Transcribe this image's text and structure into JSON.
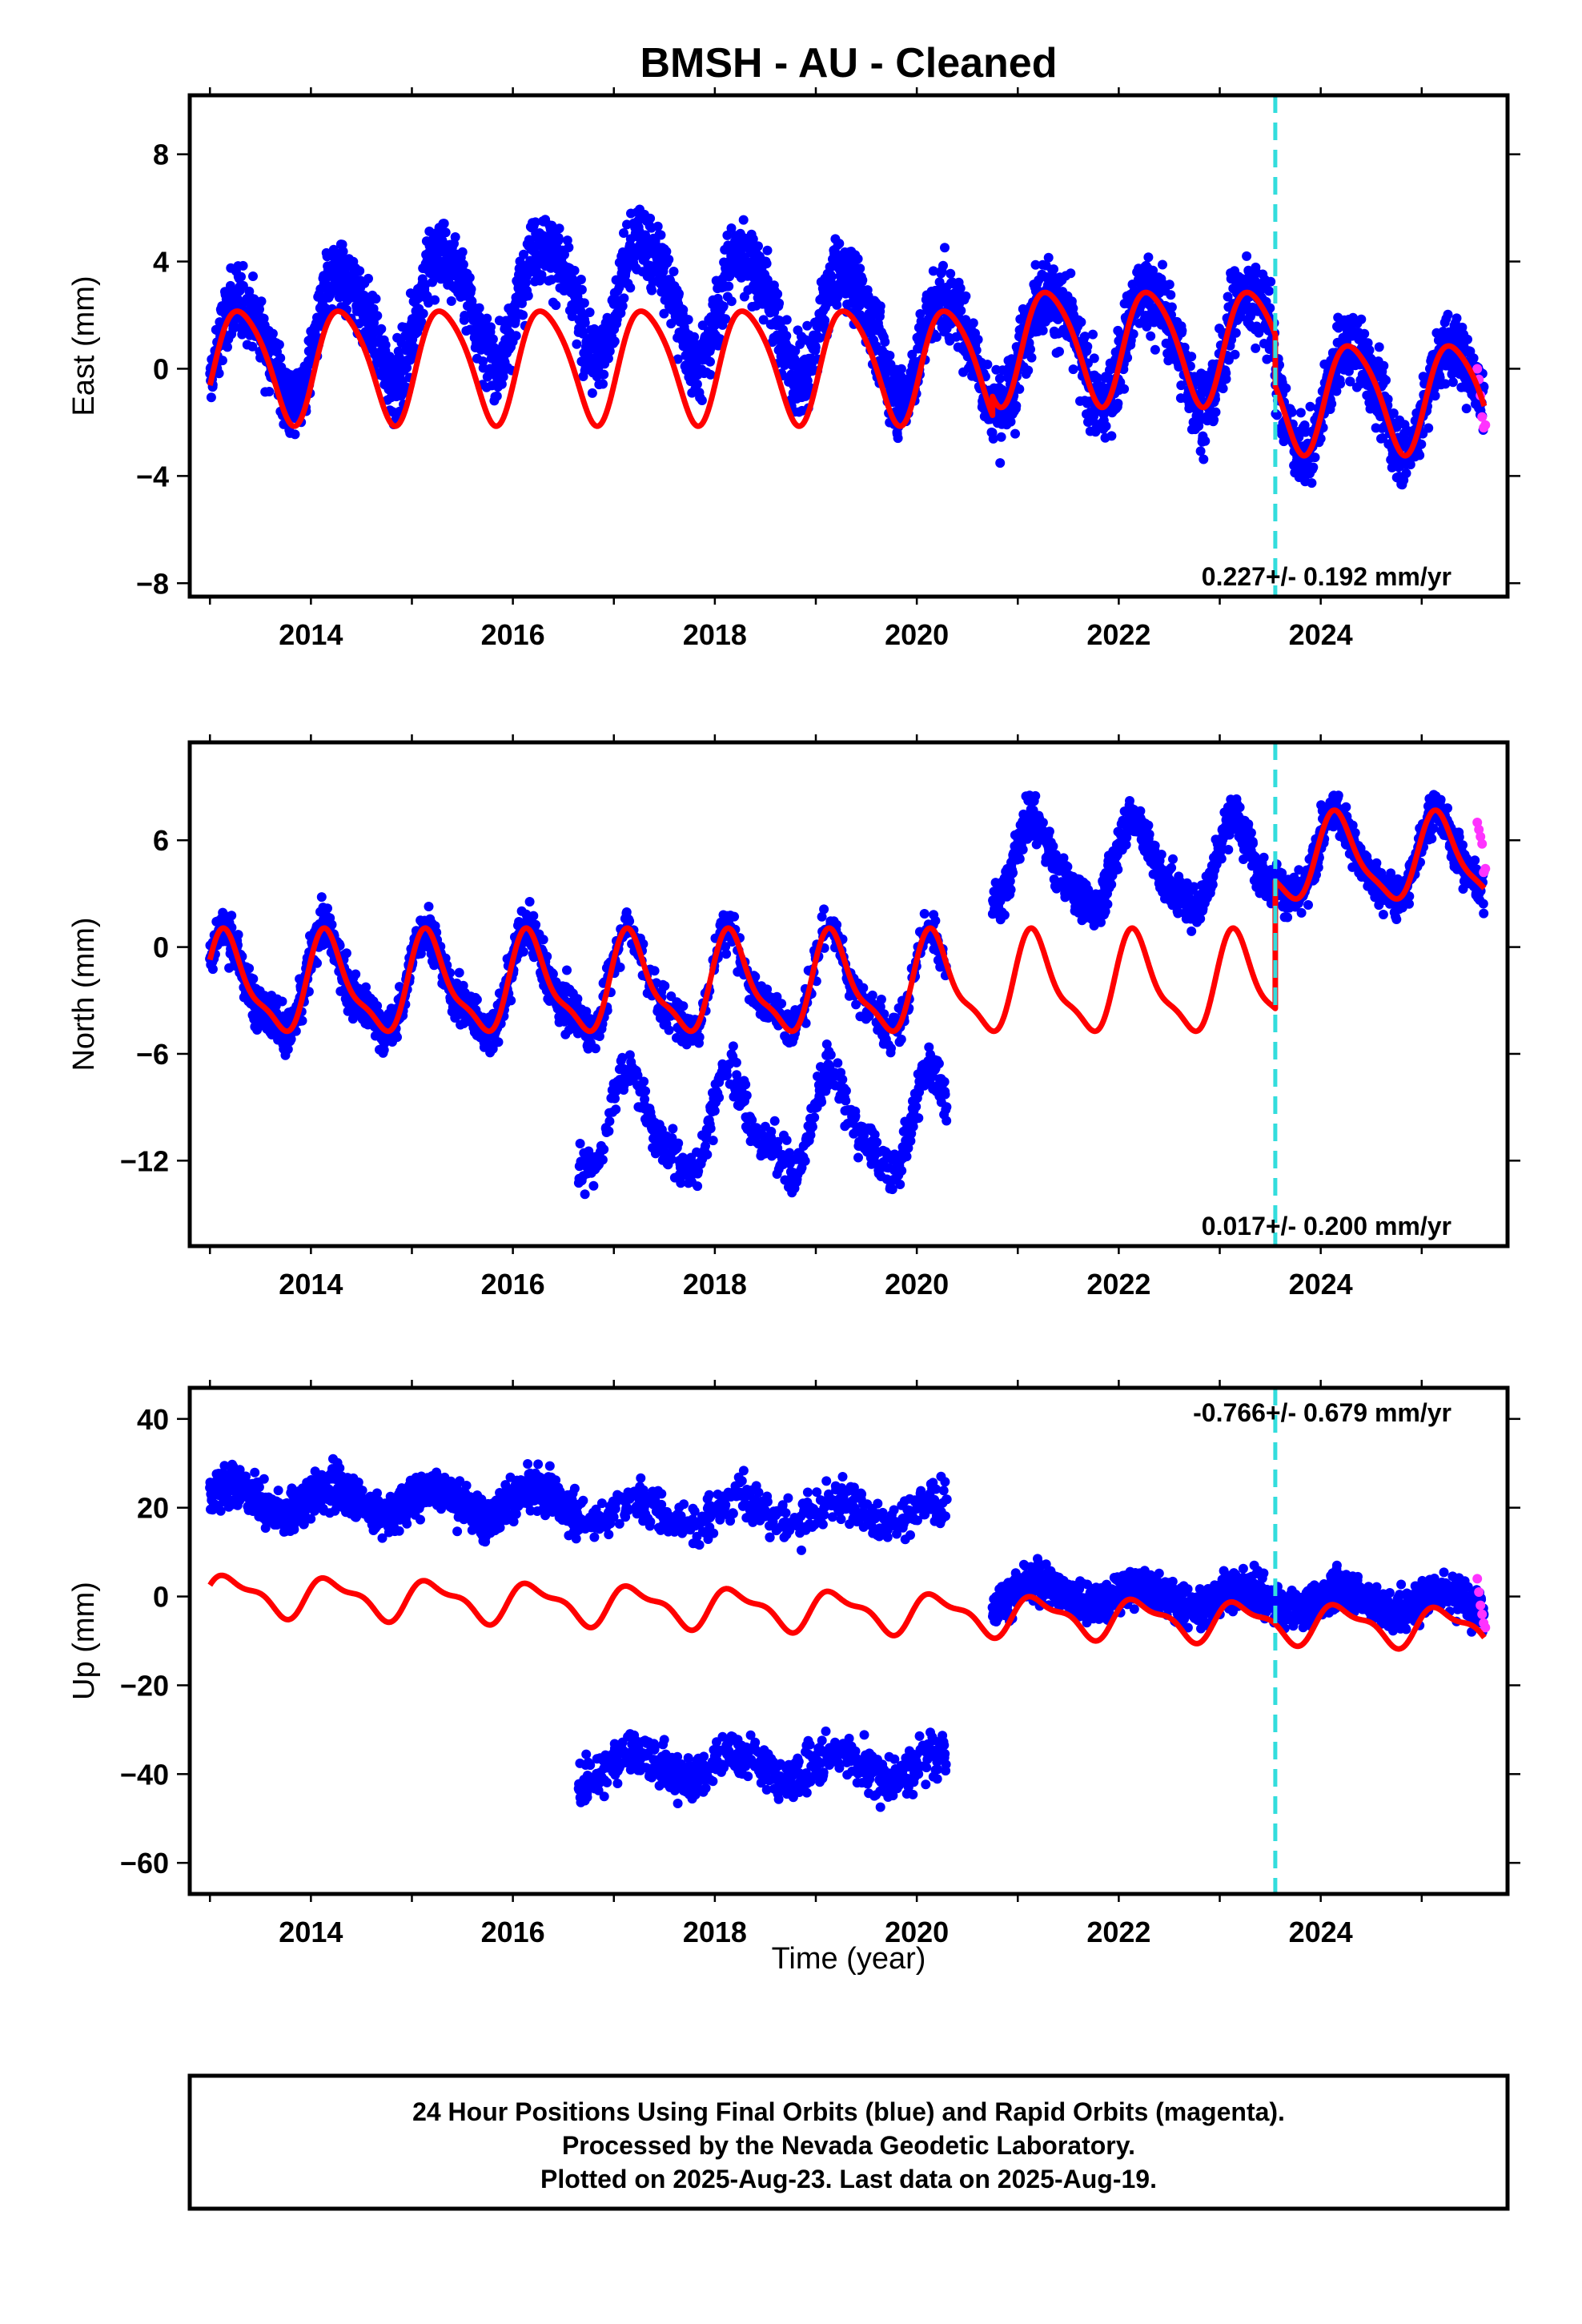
{
  "figure": {
    "title": "BMSH  - AU - Cleaned",
    "xlabel": "Time (year)",
    "footer": [
      "24 Hour Positions Using Final Orbits (blue) and Rapid Orbits (magenta).",
      "Processed by the Nevada Geodetic Laboratory.",
      "Plotted on 2025-Aug-23. Last data on 2025-Aug-19."
    ]
  },
  "colors": {
    "final_orbits": "#0000ff",
    "rapid_orbits": "#ff33ff",
    "model": "#ff0000",
    "event_line": "#33dddd"
  },
  "chart_data": [
    {
      "type": "scatter",
      "name": "east",
      "ylabel": "East (mm)",
      "rate_text": "0.227+/- 0.192 mm/yr",
      "xlim": [
        2012.8,
        2025.85
      ],
      "ylim": [
        -8.5,
        10.2
      ],
      "xticks": [
        2014,
        2016,
        2018,
        2020,
        2022,
        2024
      ],
      "yticks": [
        -8,
        -4,
        0,
        4,
        8
      ],
      "event_lines": [
        2023.55
      ],
      "segments": [
        {
          "start": 2013.0,
          "end": 2020.75,
          "offset": 0.2,
          "trend": 0.0,
          "annual_amp": 2.1,
          "annual_phase": -0.4,
          "semi_amp": 0.3,
          "semi_phase": 0.0,
          "drift": [
            0.4,
            2.6
          ],
          "scatter": 1.2
        },
        {
          "start": 2020.75,
          "end": 2023.55,
          "offset": 0.9,
          "trend": 0.0,
          "annual_amp": 2.1,
          "annual_phase": -0.4,
          "semi_amp": 0.3,
          "semi_phase": 0.0,
          "drift": [
            0.0,
            0.0
          ],
          "scatter": 1.3
        },
        {
          "start": 2023.55,
          "end": 2025.62,
          "offset": -1.0,
          "trend": 0.0,
          "annual_amp": 2.0,
          "annual_phase": -0.4,
          "semi_amp": 0.3,
          "semi_phase": 0.0,
          "drift": [
            0.0,
            0.0
          ],
          "scatter": 1.1
        }
      ],
      "rapid": {
        "start": 2025.55,
        "end": 2025.63,
        "values": [
          0.0,
          -0.4,
          -1.0,
          -1.8,
          -2.2,
          -2.1
        ]
      }
    },
    {
      "type": "scatter",
      "name": "north",
      "ylabel": "North (mm)",
      "rate_text": "0.017+/- 0.200 mm/yr",
      "xlim": [
        2012.8,
        2025.85
      ],
      "ylim": [
        -16.8,
        11.5
      ],
      "xticks": [
        2014,
        2016,
        2018,
        2020,
        2022,
        2024
      ],
      "yticks": [
        -12,
        -6,
        0,
        6
      ],
      "event_lines": [
        2023.55
      ],
      "segments": [
        {
          "start": 2013.0,
          "end": 2016.65,
          "offset": -2.2,
          "trend": 0.0,
          "annual_amp": 2.6,
          "annual_phase": 0.5,
          "semi_amp": 0.8,
          "semi_phase": 0.3,
          "drift": [
            0,
            0
          ],
          "scatter": 1.1
        },
        {
          "start": 2016.65,
          "end": 2020.3,
          "offset": -2.2,
          "trend": 0.0,
          "annual_amp": 2.6,
          "annual_phase": 0.5,
          "semi_amp": 0.8,
          "semi_phase": 0.3,
          "drift": [
            0,
            0
          ],
          "scatter": 1.1,
          "split": {
            "offset": -10.0,
            "fraction": 0.5
          }
        },
        {
          "start": 2020.75,
          "end": 2023.55,
          "offset": 4.5,
          "trend": 0.0,
          "annual_amp": 2.3,
          "annual_phase": 0.5,
          "semi_amp": 0.6,
          "semi_phase": 0.3,
          "drift": [
            0,
            0
          ],
          "scatter": 1.0
        },
        {
          "start": 2023.55,
          "end": 2025.62,
          "offset": 4.9,
          "trend": 0.0,
          "annual_amp": 2.3,
          "annual_phase": 0.5,
          "semi_amp": 0.6,
          "semi_phase": 0.3,
          "drift": [
            0,
            0
          ],
          "scatter": 1.0
        }
      ],
      "model_segments": [
        {
          "start": 2013.0,
          "end": 2023.55,
          "offset": -2.2
        },
        {
          "start": 2023.55,
          "end": 2025.62,
          "offset": 4.9
        }
      ],
      "rapid": {
        "start": 2025.55,
        "end": 2025.63,
        "values": [
          7.0,
          6.6,
          6.2,
          5.8,
          4.2,
          4.4
        ]
      }
    },
    {
      "type": "scatter",
      "name": "up",
      "ylabel": "Up (mm)",
      "rate_text": "-0.766+/- 0.679 mm/yr",
      "xlim": [
        2012.8,
        2025.85
      ],
      "ylim": [
        -67,
        47
      ],
      "xticks": [
        2014,
        2016,
        2018,
        2020,
        2022,
        2024
      ],
      "yticks": [
        -60,
        -40,
        -20,
        0,
        20,
        40
      ],
      "event_lines": [
        2023.55
      ],
      "segments": [
        {
          "start": 2013.0,
          "end": 2016.65,
          "offset": 22.0,
          "trend": -0.3,
          "annual_amp": 3.0,
          "annual_phase": 0.2,
          "semi_amp": 0,
          "semi_phase": 0,
          "drift": [
            0,
            0
          ],
          "scatter": 4.0
        },
        {
          "start": 2016.65,
          "end": 2020.3,
          "offset": 19.0,
          "trend": 0.0,
          "annual_amp": 3.0,
          "annual_phase": 0.2,
          "semi_amp": 0,
          "semi_phase": 0,
          "drift": [
            0,
            0
          ],
          "scatter": 4.5,
          "split": {
            "offset": -38.0,
            "fraction": 0.55
          }
        },
        {
          "start": 2020.75,
          "end": 2025.62,
          "offset": 1.0,
          "trend": -0.5,
          "annual_amp": 2.5,
          "annual_phase": 0.2,
          "semi_amp": 0,
          "semi_phase": 0,
          "drift": [
            0,
            0
          ],
          "scatter": 3.8
        }
      ],
      "model_curve": {
        "start": 2013.0,
        "end": 2025.62,
        "offset": 0.5,
        "trend": -0.6,
        "annual_amp": 4.0,
        "annual_phase": 0.2,
        "semi_amp": 1.6,
        "semi_phase": 0.9
      },
      "rapid": {
        "start": 2025.55,
        "end": 2025.63,
        "values": [
          4.0,
          1.0,
          -2.0,
          -4.0,
          -6.0,
          -7.0
        ]
      }
    }
  ]
}
